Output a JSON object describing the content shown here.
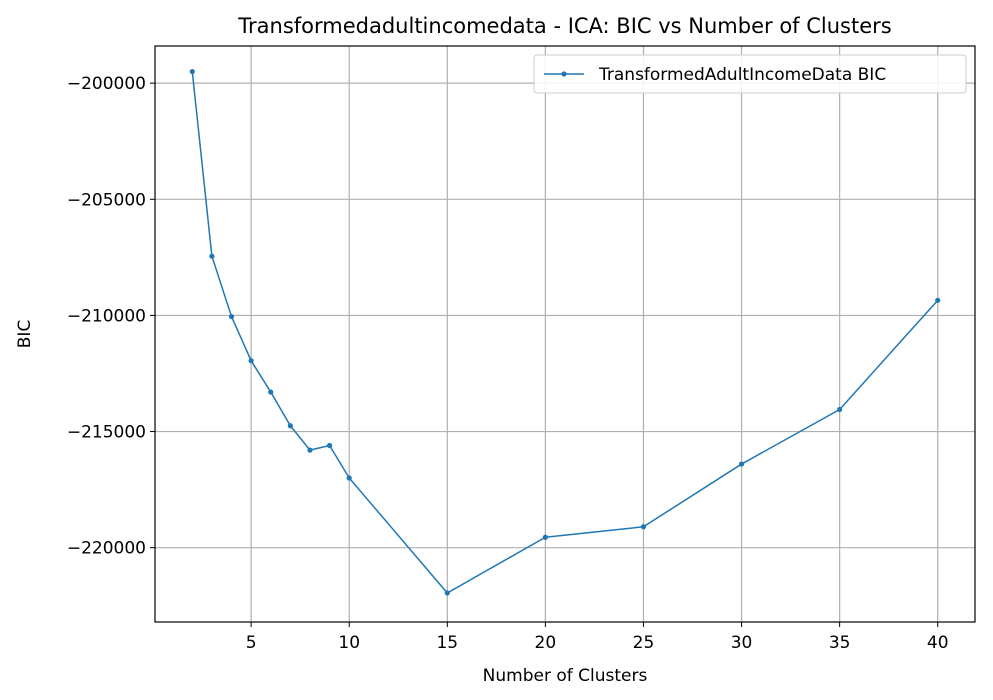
{
  "chart_data": {
    "type": "line",
    "title": "Transformedadultincomedata - ICA: BIC vs Number of Clusters",
    "xlabel": "Number of Clusters",
    "ylabel": "BIC",
    "xlim": [
      0.1,
      41.9
    ],
    "ylim": [
      -223200,
      -198400
    ],
    "xticks": [
      5,
      10,
      15,
      20,
      25,
      30,
      35,
      40
    ],
    "yticks": [
      -200000,
      -205000,
      -210000,
      -215000,
      -220000
    ],
    "ytick_labels": [
      "−200000",
      "−205000",
      "−210000",
      "−215000",
      "−220000"
    ],
    "grid": true,
    "legend_position": "top-right",
    "series": [
      {
        "name": "TransformedAdultIncomeData BIC",
        "color": "#1f77b4",
        "x": [
          2,
          3,
          4,
          5,
          6,
          7,
          8,
          9,
          10,
          15,
          20,
          25,
          30,
          35,
          40
        ],
        "values": [
          -199500,
          -207450,
          -210050,
          -211950,
          -213300,
          -214750,
          -215800,
          -215600,
          -217000,
          -221950,
          -219550,
          -219100,
          -216400,
          -214050,
          -209350
        ]
      }
    ]
  }
}
